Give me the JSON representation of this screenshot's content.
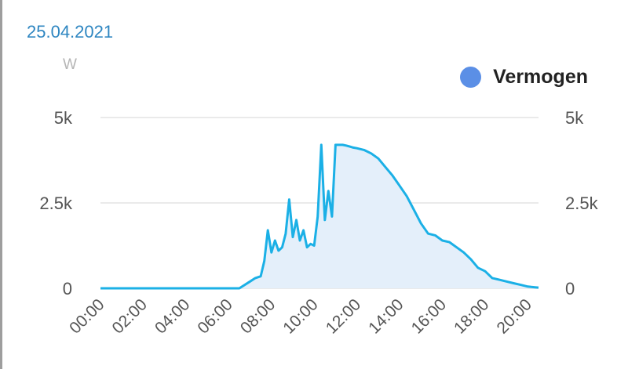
{
  "header": {
    "date": "25.04.2021",
    "unit": "W"
  },
  "legend": {
    "label": "Vermogen",
    "color": "#5b8fe6"
  },
  "chart_data": {
    "type": "area",
    "title": "",
    "xlabel": "",
    "ylabel": "W",
    "xlim": [
      "00:00",
      "20:30"
    ],
    "ylim": [
      0,
      5000
    ],
    "grid": true,
    "legend_position": "top-right",
    "x_ticks": [
      "00:00",
      "02:00",
      "04:00",
      "06:00",
      "08:00",
      "10:00",
      "12:00",
      "14:00",
      "16:00",
      "18:00",
      "20:00"
    ],
    "y_ticks_left": [
      "0",
      "2.5k",
      "5k"
    ],
    "y_ticks_right": [
      "0",
      "2.5k",
      "5k"
    ],
    "line_color": "#1bb0e6",
    "fill_color": "#e4effa",
    "series": [
      {
        "name": "Vermogen",
        "x": [
          "00:00",
          "06:30",
          "07:00",
          "07:15",
          "07:30",
          "07:40",
          "07:50",
          "08:00",
          "08:10",
          "08:20",
          "08:30",
          "08:40",
          "08:50",
          "09:00",
          "09:10",
          "09:20",
          "09:30",
          "09:40",
          "09:50",
          "10:00",
          "10:10",
          "10:20",
          "10:30",
          "10:40",
          "10:50",
          "11:00",
          "11:10",
          "11:20",
          "11:30",
          "11:40",
          "11:50",
          "12:00",
          "12:20",
          "12:40",
          "13:00",
          "13:20",
          "13:40",
          "14:00",
          "14:20",
          "14:40",
          "15:00",
          "15:20",
          "15:40",
          "16:00",
          "16:20",
          "16:40",
          "17:00",
          "17:20",
          "17:40",
          "18:00",
          "18:20",
          "18:40",
          "19:00",
          "19:20",
          "19:40",
          "20:00",
          "20:10",
          "20:20",
          "20:30"
        ],
        "values": [
          0,
          0,
          200,
          300,
          350,
          800,
          1700,
          1050,
          1400,
          1100,
          1200,
          1600,
          2600,
          1500,
          2000,
          1400,
          1700,
          1200,
          1300,
          1250,
          2100,
          4200,
          2000,
          2850,
          2100,
          4200,
          4200,
          4200,
          4180,
          4150,
          4120,
          4100,
          4050,
          3950,
          3800,
          3550,
          3300,
          3000,
          2700,
          2300,
          1900,
          1600,
          1550,
          1400,
          1350,
          1200,
          1050,
          850,
          600,
          500,
          300,
          250,
          200,
          150,
          100,
          50,
          40,
          30,
          20
        ]
      }
    ]
  }
}
